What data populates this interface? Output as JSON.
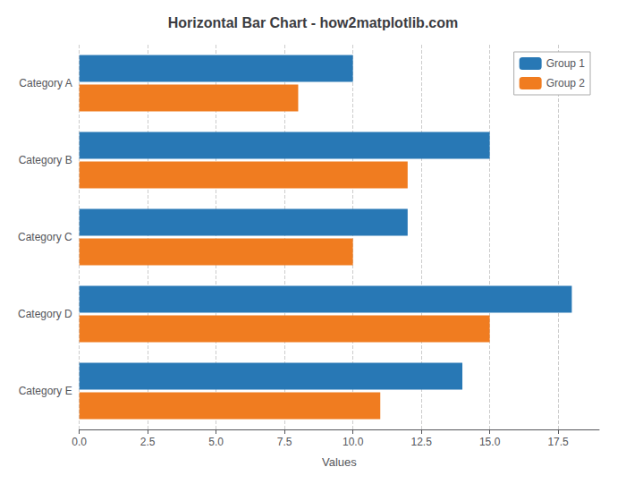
{
  "chart_data": {
    "type": "bar",
    "orientation": "horizontal",
    "title": "Horizontal Bar Chart - how2matplotlib.com",
    "xlabel": "Values",
    "categories": [
      "Category A",
      "Category B",
      "Category C",
      "Category D",
      "Category E"
    ],
    "series": [
      {
        "name": "Group 1",
        "color": "#2878b5",
        "values": [
          10,
          15,
          12,
          18,
          14
        ]
      },
      {
        "name": "Group 2",
        "color": "#f07c20",
        "values": [
          8,
          12,
          10,
          15,
          11
        ]
      }
    ],
    "xlim": [
      0,
      19
    ],
    "xticks": [
      {
        "value": 0,
        "label": "0.0"
      },
      2.5,
      {
        "value": 5,
        "label": "5.0"
      },
      7.5,
      {
        "value": 10,
        "label": "10.0"
      },
      12.5,
      {
        "value": 15,
        "label": "15.0"
      },
      17.5
    ],
    "grid": true,
    "legend": "upper right"
  }
}
